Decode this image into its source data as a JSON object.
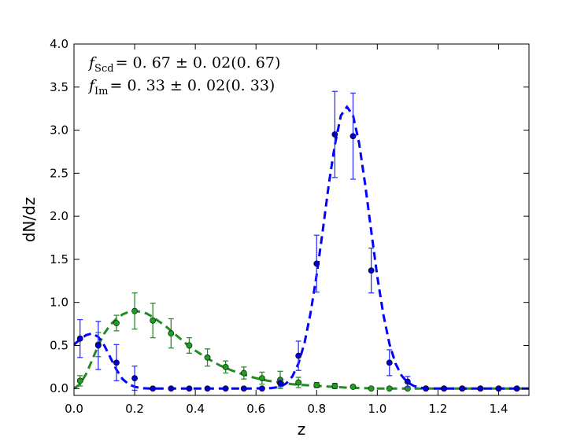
{
  "chart_data": {
    "type": "line",
    "title": "",
    "xlabel": "z",
    "ylabel": "dN/dz",
    "xlim": [
      0.0,
      1.5
    ],
    "ylim": [
      -0.08,
      4.0
    ],
    "xticks": [
      "0.0",
      "0.2",
      "0.4",
      "0.6",
      "0.8",
      "1.0",
      "1.2",
      "1.4"
    ],
    "yticks": [
      "0.0",
      "0.5",
      "1.0",
      "1.5",
      "2.0",
      "2.5",
      "3.0",
      "3.5",
      "4.0"
    ],
    "grid": false,
    "annotations": [
      {
        "main": "f",
        "sub": "Scd",
        "rest": "= 0. 67 ± 0. 02(0. 67)"
      },
      {
        "main": "f",
        "sub": "Im",
        "rest": "= 0. 33 ± 0. 02(0. 33)"
      }
    ],
    "series": [
      {
        "color": "#0000ff",
        "marker_color": "#0000cc",
        "errorbar_color": "#3333ff",
        "x": [
          0.02,
          0.08,
          0.14,
          0.2,
          0.26,
          0.32,
          0.38,
          0.44,
          0.5,
          0.56,
          0.62,
          0.68,
          0.74,
          0.8,
          0.86,
          0.92,
          0.98,
          1.04,
          1.1,
          1.16,
          1.22,
          1.28,
          1.34,
          1.4,
          1.46
        ],
        "y": [
          0.58,
          0.5,
          0.3,
          0.12,
          0.0,
          0.0,
          0.0,
          0.0,
          0.0,
          0.0,
          0.0,
          0.06,
          0.38,
          1.45,
          2.95,
          2.93,
          1.37,
          0.3,
          0.08,
          0.0,
          0.0,
          0.0,
          0.0,
          0.0,
          0.0
        ],
        "err": [
          0.22,
          0.28,
          0.21,
          0.14,
          0,
          0,
          0,
          0,
          0,
          0,
          0,
          0.04,
          0.17,
          0.33,
          0.5,
          0.5,
          0.26,
          0.15,
          0.06,
          0,
          0,
          0,
          0,
          0,
          0
        ],
        "fit_x": [
          0.0,
          0.02,
          0.04,
          0.06,
          0.08,
          0.1,
          0.12,
          0.14,
          0.16,
          0.18,
          0.2,
          0.22,
          0.25,
          0.3,
          0.4,
          0.5,
          0.6,
          0.65,
          0.68,
          0.7,
          0.72,
          0.74,
          0.76,
          0.78,
          0.8,
          0.82,
          0.84,
          0.86,
          0.88,
          0.9,
          0.92,
          0.94,
          0.96,
          0.98,
          1.0,
          1.02,
          1.04,
          1.06,
          1.08,
          1.1,
          1.12,
          1.14,
          1.16,
          1.2,
          1.3,
          1.4,
          1.5
        ],
        "fit_y": [
          0.51,
          0.57,
          0.62,
          0.64,
          0.6,
          0.5,
          0.36,
          0.22,
          0.11,
          0.05,
          0.02,
          0.005,
          0.0,
          0.0,
          0.0,
          0.0,
          0.0,
          0.005,
          0.02,
          0.06,
          0.14,
          0.29,
          0.53,
          0.88,
          1.32,
          1.83,
          2.37,
          2.83,
          3.17,
          3.27,
          3.17,
          2.85,
          2.37,
          1.83,
          1.3,
          0.86,
          0.52,
          0.29,
          0.15,
          0.07,
          0.03,
          0.01,
          0.0,
          0.0,
          0.0,
          0.0,
          0.0
        ]
      },
      {
        "color": "#228b22",
        "marker_color": "#1e9e1e",
        "errorbar_color": "#2e8b2e",
        "x": [
          0.02,
          0.08,
          0.14,
          0.2,
          0.26,
          0.32,
          0.38,
          0.44,
          0.5,
          0.56,
          0.62,
          0.68,
          0.74,
          0.8,
          0.86,
          0.92,
          0.98,
          1.04,
          1.1,
          1.16,
          1.22,
          1.28,
          1.34,
          1.4,
          1.46
        ],
        "y": [
          0.09,
          0.51,
          0.76,
          0.9,
          0.79,
          0.64,
          0.5,
          0.36,
          0.25,
          0.18,
          0.12,
          0.1,
          0.07,
          0.04,
          0.03,
          0.02,
          0.0,
          0.0,
          0.0,
          0.0,
          0.0,
          0.0,
          0.0,
          0.0,
          0.0
        ],
        "err": [
          0.06,
          0.14,
          0.09,
          0.21,
          0.2,
          0.17,
          0.09,
          0.1,
          0.07,
          0.07,
          0.07,
          0.1,
          0.06,
          0.03,
          0.03,
          0.01,
          0,
          0,
          0,
          0,
          0,
          0,
          0,
          0,
          0
        ],
        "fit_x": [
          0.0,
          0.02,
          0.04,
          0.06,
          0.08,
          0.1,
          0.12,
          0.14,
          0.16,
          0.18,
          0.2,
          0.22,
          0.24,
          0.26,
          0.28,
          0.3,
          0.32,
          0.34,
          0.36,
          0.38,
          0.4,
          0.44,
          0.48,
          0.52,
          0.56,
          0.6,
          0.64,
          0.68,
          0.72,
          0.76,
          0.8,
          0.85,
          0.9,
          0.95,
          1.0,
          1.1,
          1.2,
          1.3,
          1.4,
          1.5
        ],
        "fit_y": [
          0.0,
          0.05,
          0.17,
          0.33,
          0.5,
          0.64,
          0.74,
          0.81,
          0.86,
          0.89,
          0.9,
          0.89,
          0.87,
          0.83,
          0.78,
          0.73,
          0.67,
          0.61,
          0.55,
          0.49,
          0.44,
          0.35,
          0.27,
          0.21,
          0.16,
          0.12,
          0.09,
          0.07,
          0.05,
          0.04,
          0.03,
          0.02,
          0.01,
          0.005,
          0.0,
          0.0,
          0.0,
          0.0,
          0.0,
          0.0
        ]
      }
    ]
  }
}
